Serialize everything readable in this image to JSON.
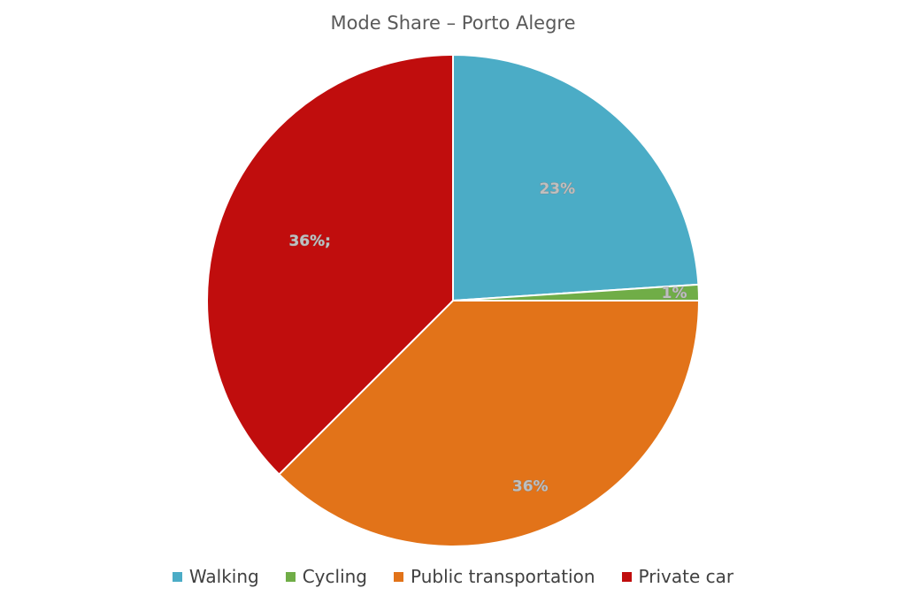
{
  "chart_data": {
    "type": "pie",
    "title": "Mode Share – Porto Alegre",
    "categories": [
      "Walking",
      "Cycling",
      "Public transportation",
      "Private car"
    ],
    "values": [
      23,
      1,
      36,
      36
    ],
    "data_labels": [
      "23%",
      "1%",
      "36%",
      "36%;"
    ],
    "colors": [
      "#4bacc6",
      "#70ad47",
      "#e27319",
      "#c00d0d"
    ],
    "legend_position": "bottom"
  }
}
